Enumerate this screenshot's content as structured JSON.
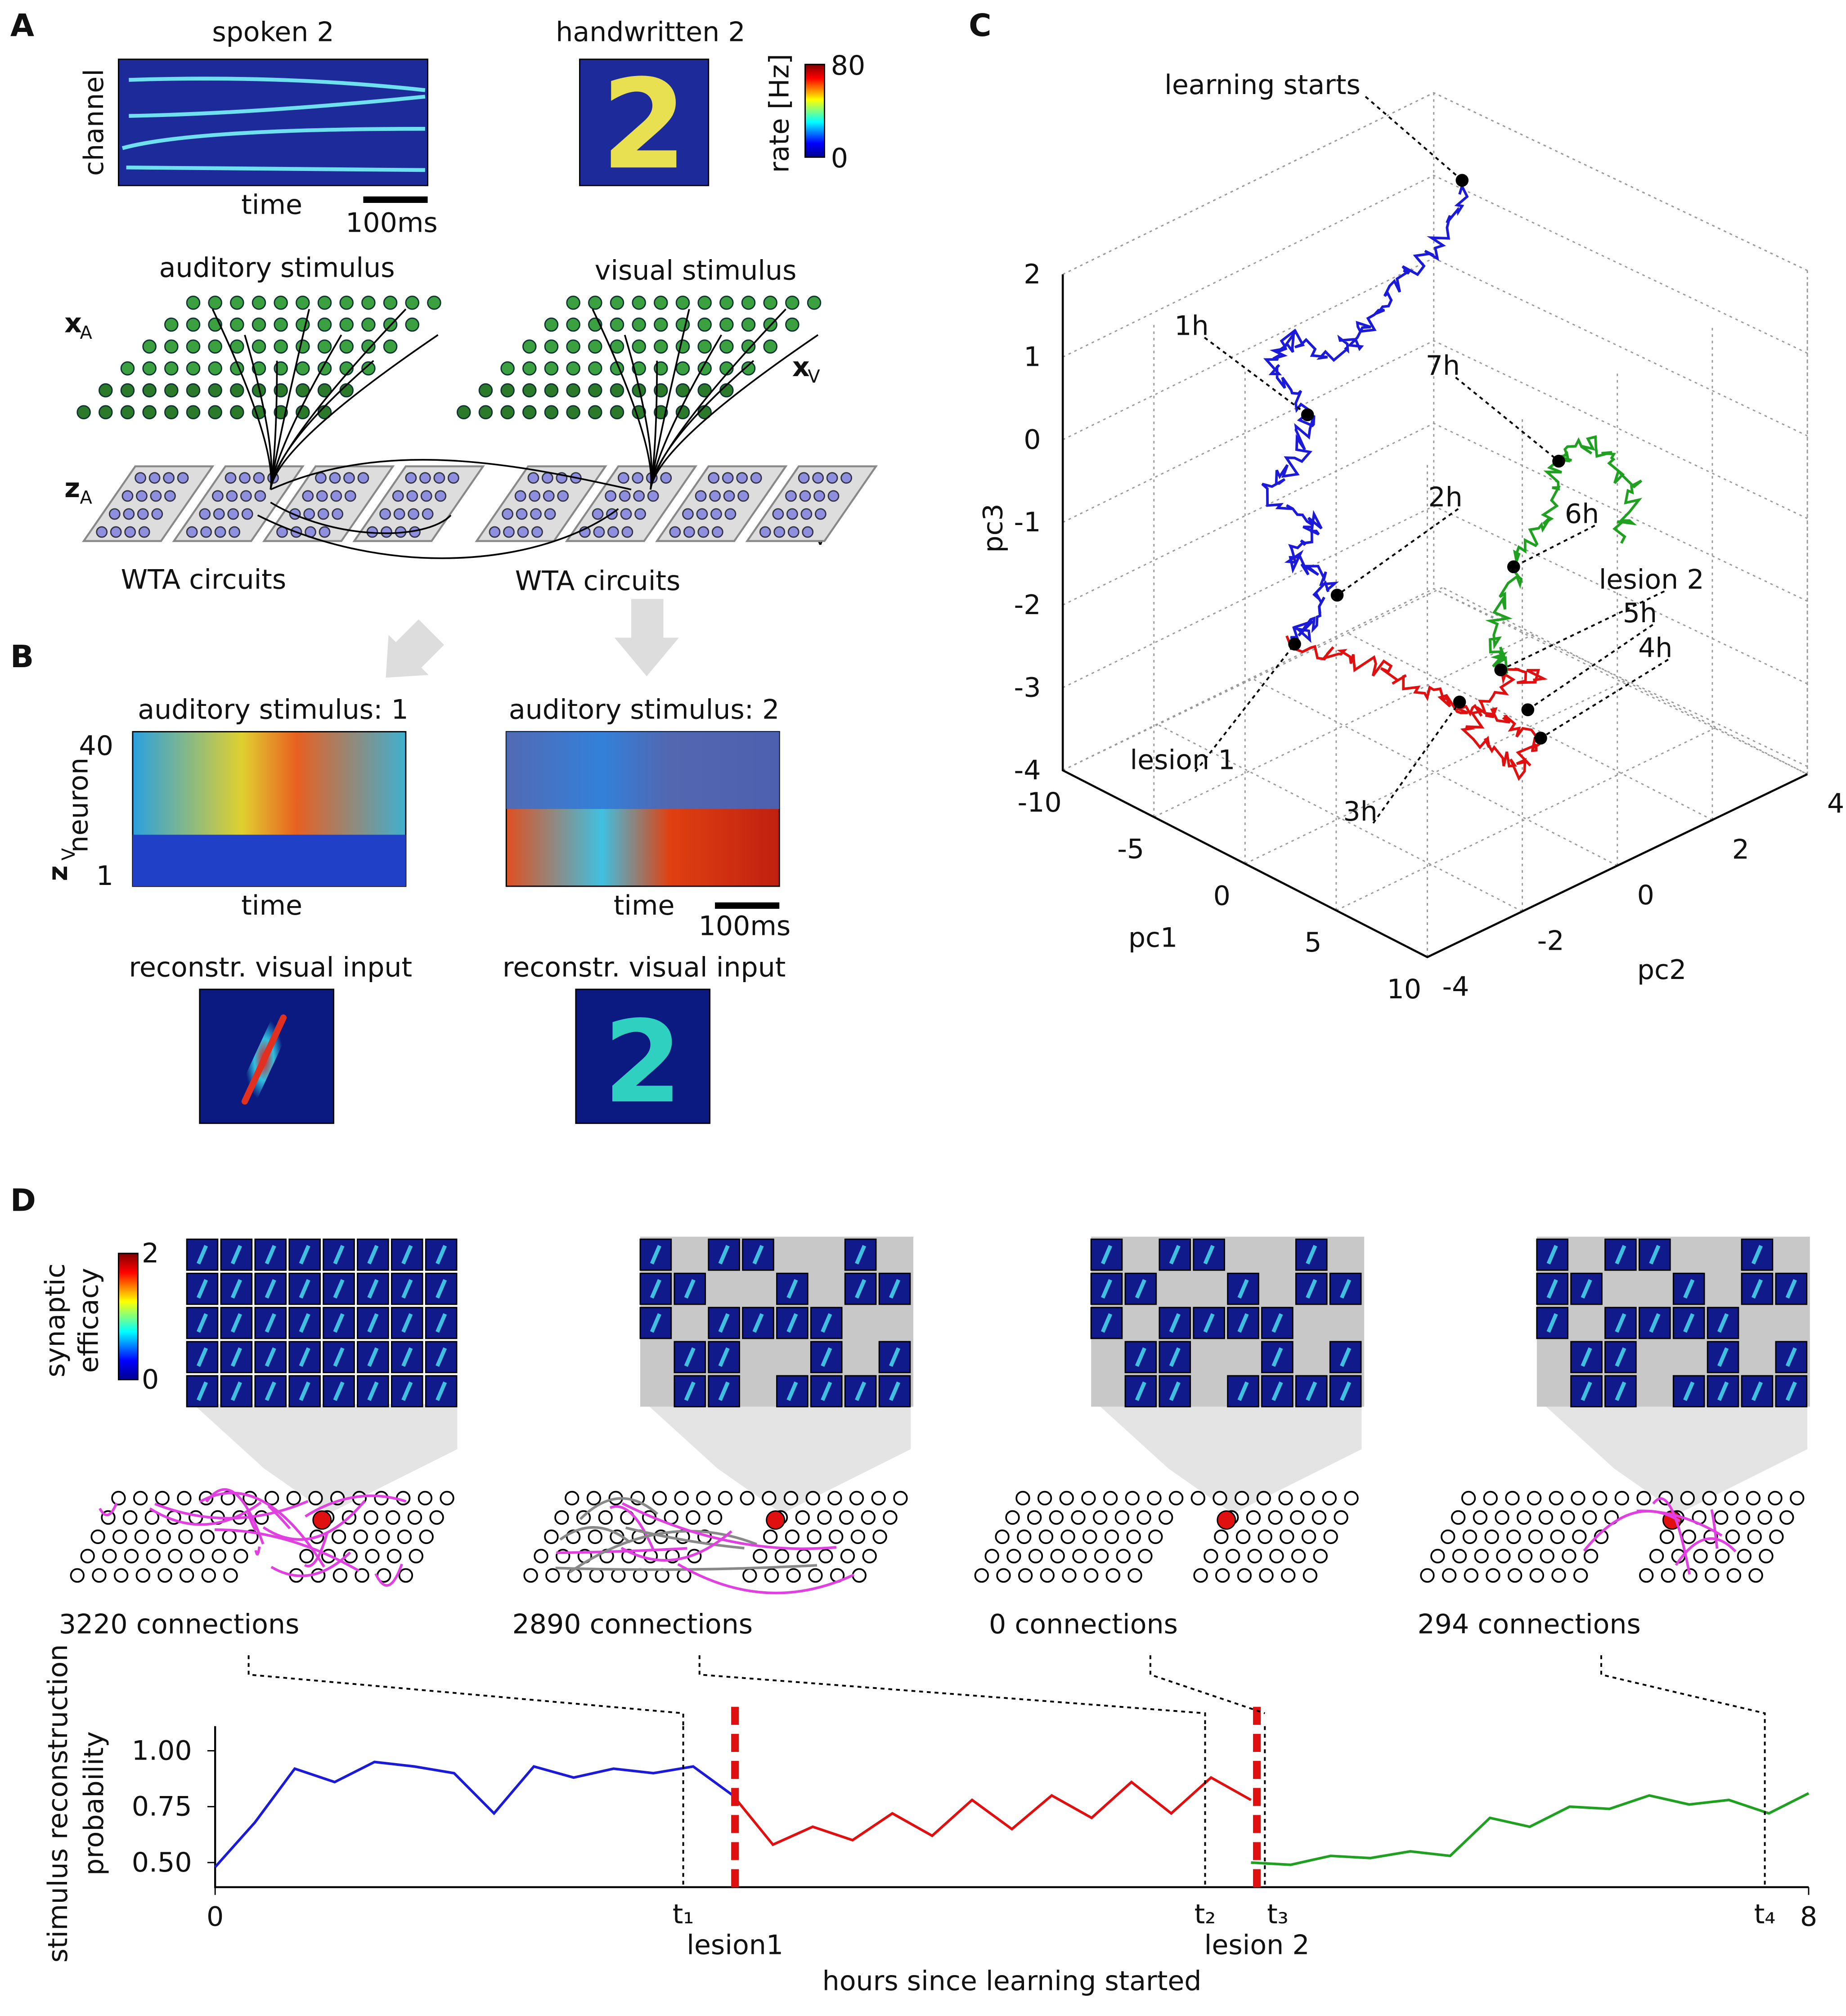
{
  "panel_a": {
    "label": "A",
    "spoken_title": "spoken 2",
    "handwritten_title": "handwritten 2",
    "y_label": "channel",
    "x_label": "time",
    "scale_bar": "100ms",
    "colorbar": {
      "label": "rate [Hz]",
      "max": 80,
      "min": 0
    },
    "auditory": "auditory stimulus",
    "visual": "visual stimulus",
    "x_a": {
      "main": "x",
      "sub": "A"
    },
    "x_v": {
      "main": "x",
      "sub": "V"
    },
    "z_a": {
      "main": "z",
      "sub": "A"
    },
    "z_v": {
      "main": "z",
      "sub": "V"
    },
    "wta": [
      "WTA circuits",
      "WTA circuits"
    ]
  },
  "panel_b": {
    "label": "B",
    "titles": [
      "auditory stimulus: 1",
      "auditory stimulus: 2"
    ],
    "y_label": "neuron",
    "z_v": {
      "main": "z",
      "sub": "V"
    },
    "y_top": 40,
    "y_bottom": 1,
    "x_labels": [
      "time",
      "time"
    ],
    "scale_bar": "100ms",
    "recon": [
      "reconstr. visual input",
      "reconstr. visual input"
    ]
  },
  "panel_c": {
    "label": "C",
    "annotations": [
      "learning starts",
      "1h",
      "7h",
      "2h",
      "6h",
      "lesion 2",
      "5h",
      "4h",
      "lesion 1",
      "3h"
    ],
    "pc1_ticks": [
      -10,
      -5,
      0,
      5,
      10
    ],
    "pc2_ticks": [
      -4,
      -2,
      0,
      2,
      4
    ],
    "pc3_ticks": [
      2,
      1,
      0,
      -1,
      -2,
      -3,
      -4
    ],
    "pc1_label": "pc1",
    "pc2_label": "pc2",
    "pc3_label": "pc3"
  },
  "panel_d": {
    "label": "D",
    "colorbar": {
      "label": [
        "synaptic",
        "efficacy"
      ],
      "max": 2,
      "min": 0
    },
    "connections": [
      "3220 connections",
      "2890 connections",
      "0 connections",
      "294 connections"
    ],
    "chart": {
      "type": "line",
      "y_label": [
        "stimulus reconstruction",
        "probability"
      ],
      "x_label": "hours since learning started",
      "xlim": [
        0,
        8
      ],
      "xticks": [
        0,
        8
      ],
      "ylim": [
        0.39,
        1.11
      ],
      "yticks": [
        {
          "value": 0.5,
          "label": "0.50"
        },
        0.75,
        {
          "value": 1,
          "label": "1.00"
        }
      ],
      "series": [
        {
          "color": "#1a1ad8",
          "x": [
            0,
            0.2,
            0.4,
            0.6,
            0.8,
            1.0,
            1.2,
            1.4,
            1.6,
            1.8,
            2.0,
            2.2,
            2.4,
            2.6
          ],
          "values": [
            0.48,
            0.68,
            0.92,
            0.86,
            0.95,
            0.93,
            0.9,
            0.72,
            0.93,
            0.88,
            0.92,
            0.9,
            0.93,
            0.8
          ]
        },
        {
          "color": "#e01010",
          "x": [
            2.6,
            2.8,
            3.0,
            3.2,
            3.4,
            3.6,
            3.8,
            4.0,
            4.2,
            4.4,
            4.6,
            4.8,
            5.0,
            5.2
          ],
          "values": [
            0.8,
            0.58,
            0.66,
            0.6,
            0.72,
            0.62,
            0.78,
            0.65,
            0.8,
            0.7,
            0.86,
            0.72,
            0.88,
            0.78
          ]
        },
        {
          "color": "#20a020",
          "x": [
            5.2,
            5.4,
            5.6,
            5.8,
            6.0,
            6.2,
            6.4,
            6.6,
            6.8,
            7.0,
            7.2,
            7.4,
            7.6,
            7.8,
            8.0
          ],
          "values": [
            0.5,
            0.49,
            0.53,
            0.52,
            0.55,
            0.53,
            0.7,
            0.66,
            0.75,
            0.74,
            0.8,
            0.76,
            0.78,
            0.72,
            0.81
          ]
        }
      ],
      "lesions": [
        {
          "x": 2.61,
          "label": "lesion1"
        },
        {
          "x": 5.23,
          "label": "lesion 2"
        }
      ],
      "time_points": [
        {
          "x": 2.35,
          "label": "t₁"
        },
        {
          "x": 4.97,
          "label": "t₂"
        },
        {
          "x": 5.27,
          "label": "t₃"
        },
        {
          "x": 7.78,
          "label": "t₄"
        }
      ]
    }
  }
}
